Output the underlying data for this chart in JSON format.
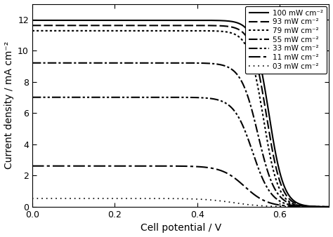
{
  "xlabel": "Cell potential / V",
  "ylabel": "Current density / mA cm⁻²",
  "xlim": [
    0.0,
    0.72
  ],
  "ylim": [
    0.0,
    13.0
  ],
  "xticks": [
    0.0,
    0.2,
    0.4,
    0.6
  ],
  "yticks": [
    0,
    2,
    4,
    6,
    8,
    10,
    12
  ],
  "curves": [
    {
      "label": "100 mW cm⁻²",
      "linestyle": "solid",
      "linewidth": 1.5,
      "Jsc": 11.95,
      "Voc": 0.7,
      "n": 28
    },
    {
      "label": "93 mW cm⁻²",
      "linestyle": "dashed",
      "linewidth": 1.5,
      "Jsc": 11.62,
      "Voc": 0.693,
      "n": 28
    },
    {
      "label": "79 mW cm⁻²",
      "linestyle": "dotted",
      "linewidth": 1.5,
      "Jsc": 11.28,
      "Voc": 0.684,
      "n": 28
    },
    {
      "label": "55 mW cm⁻²",
      "linestyle": "dashdot",
      "linewidth": 1.5,
      "Jsc": 9.22,
      "Voc": 0.668,
      "n": 24
    },
    {
      "label": "33 mW cm⁻²",
      "linestyle": "dashdotdot",
      "linewidth": 1.5,
      "Jsc": 7.02,
      "Voc": 0.652,
      "n": 22
    },
    {
      "label": "11 mW cm⁻²",
      "linestyle": "longdash",
      "linewidth": 1.5,
      "Jsc": 2.62,
      "Voc": 0.628,
      "n": 18
    },
    {
      "label": "03 mW cm⁻²",
      "linestyle": "finedot",
      "linewidth": 1.2,
      "Jsc": 0.54,
      "Voc": 0.595,
      "n": 14
    }
  ],
  "color": "#000000",
  "background_color": "#ffffff",
  "legend_fontsize": 7.5,
  "axis_fontsize": 10,
  "tick_fontsize": 9
}
